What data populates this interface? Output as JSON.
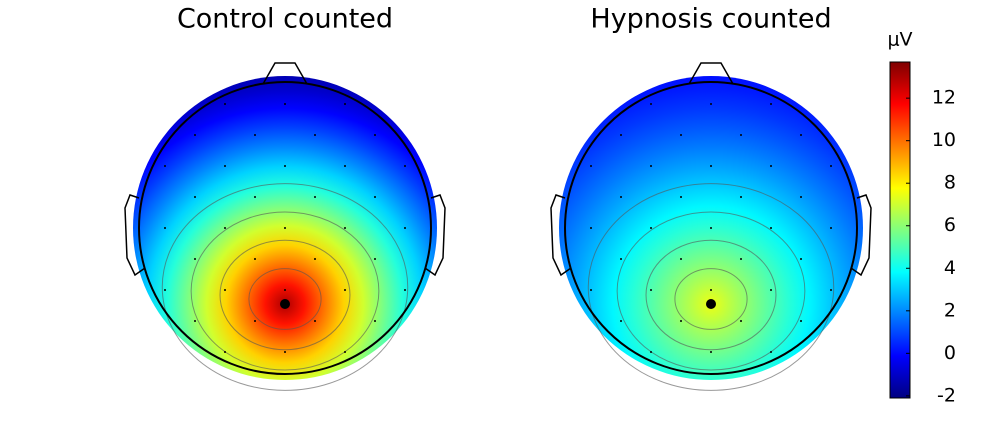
{
  "chart_data": {
    "type": "topomap",
    "maps": [
      {
        "title": "Control counted",
        "peak": 13,
        "frontal": -1.5
      },
      {
        "title": "Hypnosis counted",
        "peak": 7.5,
        "frontal": 0
      }
    ],
    "colorbar": {
      "label": "μV",
      "clim": [
        -2.1,
        13.7
      ],
      "ticks": [
        -2,
        0,
        2,
        4,
        6,
        8,
        10,
        12
      ]
    }
  }
}
